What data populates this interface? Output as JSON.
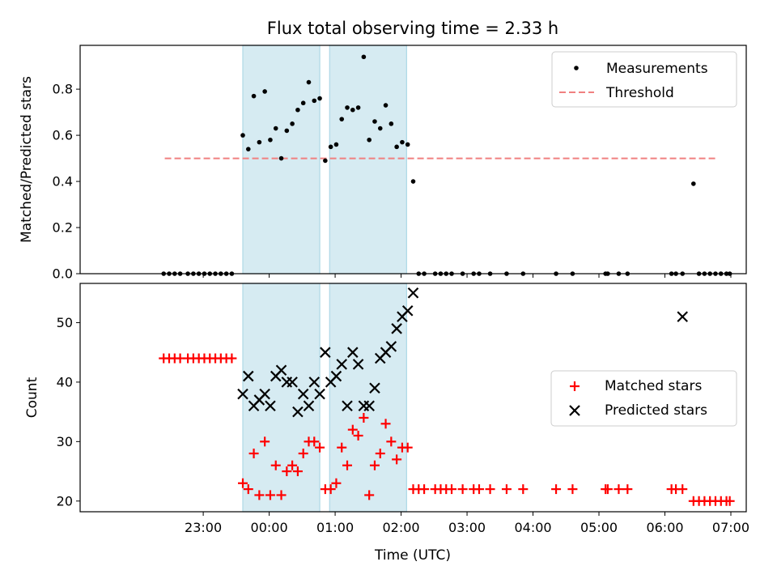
{
  "chart_data": [
    {
      "type": "scatter",
      "title": "Flux total observing time = 2.33 h",
      "ylabel": "Matched/Predicted stars",
      "ylim": [
        0,
        0.99
      ],
      "yticks": [
        "0.0",
        "0.2",
        "0.4",
        "0.6",
        "0.8"
      ],
      "legend_position": "top-right",
      "shaded_intervals": [
        [
          "23:36",
          "00:46"
        ],
        [
          "00:55",
          "02:05"
        ]
      ],
      "threshold": {
        "name": "Threshold",
        "y": 0.5,
        "x_range": [
          "22:25",
          "06:46"
        ],
        "color": "#f08080"
      },
      "series": [
        {
          "name": "Measurements",
          "color": "#000000",
          "x": [
            "22:24",
            "22:29",
            "22:34",
            "22:39",
            "22:46",
            "22:51",
            "22:56",
            "23:01",
            "23:06",
            "23:11",
            "23:16",
            "23:21",
            "23:26",
            "23:36",
            "23:41",
            "23:46",
            "23:51",
            "23:56",
            "00:01",
            "00:06",
            "00:11",
            "00:16",
            "00:21",
            "00:26",
            "00:31",
            "00:36",
            "00:41",
            "00:46",
            "00:51",
            "00:56",
            "01:01",
            "01:06",
            "01:11",
            "01:16",
            "01:21",
            "01:26",
            "01:31",
            "01:36",
            "01:41",
            "01:46",
            "01:51",
            "01:56",
            "02:01",
            "02:06",
            "02:11",
            "02:16",
            "02:21",
            "02:31",
            "02:36",
            "02:41",
            "02:46",
            "02:56",
            "03:06",
            "03:11",
            "03:21",
            "03:36",
            "03:51",
            "04:21",
            "04:36",
            "05:06",
            "05:08",
            "05:18",
            "05:26",
            "06:06",
            "06:10",
            "06:16",
            "06:26",
            "06:31",
            "06:36",
            "06:41",
            "06:46",
            "06:51",
            "06:56",
            "06:59"
          ],
          "y": [
            0,
            0,
            0,
            0,
            0,
            0,
            0,
            0,
            0,
            0,
            0,
            0,
            0,
            0.6,
            0.54,
            0.77,
            0.57,
            0.79,
            0.58,
            0.63,
            0.5,
            0.62,
            0.65,
            0.71,
            0.74,
            0.83,
            0.75,
            0.76,
            0.49,
            0.55,
            0.56,
            0.67,
            0.72,
            0.71,
            0.72,
            0.94,
            0.58,
            0.66,
            0.63,
            0.73,
            0.65,
            0.55,
            0.57,
            0.56,
            0.4,
            0,
            0,
            0,
            0,
            0,
            0,
            0,
            0,
            0,
            0,
            0,
            0,
            0,
            0,
            0,
            0,
            0,
            0,
            0,
            0,
            0,
            0.39,
            0,
            0,
            0,
            0,
            0,
            0,
            0
          ]
        }
      ]
    },
    {
      "type": "scatter",
      "xlabel": "Time (UTC)",
      "ylabel": "Count",
      "ylim": [
        18.2,
        56.6
      ],
      "yticks": [
        "20",
        "30",
        "40",
        "50"
      ],
      "xticks": [
        "23:00",
        "00:00",
        "01:00",
        "02:00",
        "03:00",
        "04:00",
        "05:00",
        "06:00",
        "07:00"
      ],
      "legend_position": "center-right",
      "series": [
        {
          "name": "Matched stars",
          "color": "#ff0000",
          "marker": "plus",
          "x": [
            "22:24",
            "22:29",
            "22:34",
            "22:39",
            "22:46",
            "22:51",
            "22:56",
            "23:01",
            "23:06",
            "23:11",
            "23:16",
            "23:21",
            "23:26",
            "23:36",
            "23:41",
            "23:46",
            "23:51",
            "23:56",
            "00:01",
            "00:06",
            "00:11",
            "00:16",
            "00:21",
            "00:26",
            "00:31",
            "00:36",
            "00:41",
            "00:46",
            "00:51",
            "00:56",
            "01:01",
            "01:06",
            "01:11",
            "01:16",
            "01:21",
            "01:26",
            "01:31",
            "01:36",
            "01:41",
            "01:46",
            "01:51",
            "01:56",
            "02:01",
            "02:06",
            "02:11",
            "02:16",
            "02:21",
            "02:31",
            "02:36",
            "02:41",
            "02:46",
            "02:56",
            "03:06",
            "03:11",
            "03:21",
            "03:36",
            "03:51",
            "04:21",
            "04:36",
            "05:06",
            "05:08",
            "05:18",
            "05:26",
            "06:06",
            "06:10",
            "06:16",
            "06:26",
            "06:31",
            "06:36",
            "06:41",
            "06:46",
            "06:51",
            "06:56",
            "06:59"
          ],
          "y": [
            44,
            44,
            44,
            44,
            44,
            44,
            44,
            44,
            44,
            44,
            44,
            44,
            44,
            23,
            22,
            28,
            21,
            30,
            21,
            26,
            21,
            25,
            26,
            25,
            28,
            30,
            30,
            29,
            22,
            22,
            23,
            29,
            26,
            32,
            31,
            34,
            21,
            26,
            28,
            33,
            30,
            27,
            29,
            29,
            22,
            22,
            22,
            22,
            22,
            22,
            22,
            22,
            22,
            22,
            22,
            22,
            22,
            22,
            22,
            22,
            22,
            22,
            22,
            22,
            22,
            22,
            20,
            20,
            20,
            20,
            20,
            20,
            20,
            20
          ]
        },
        {
          "name": "Predicted stars",
          "color": "#000000",
          "marker": "x",
          "x": [
            "23:36",
            "23:41",
            "23:46",
            "23:51",
            "23:56",
            "00:01",
            "00:06",
            "00:11",
            "00:16",
            "00:21",
            "00:26",
            "00:31",
            "00:36",
            "00:41",
            "00:46",
            "00:51",
            "00:56",
            "01:01",
            "01:06",
            "01:11",
            "01:16",
            "01:21",
            "01:26",
            "01:31",
            "01:36",
            "01:41",
            "01:46",
            "01:51",
            "01:56",
            "02:01",
            "02:06",
            "02:11",
            "06:16"
          ],
          "y": [
            38,
            41,
            36,
            37,
            38,
            36,
            41,
            42,
            40,
            40,
            35,
            38,
            36,
            40,
            38,
            45,
            40,
            41,
            43,
            36,
            45,
            43,
            36,
            36,
            39,
            44,
            45,
            46,
            49,
            51,
            52,
            55,
            51
          ]
        }
      ]
    }
  ]
}
